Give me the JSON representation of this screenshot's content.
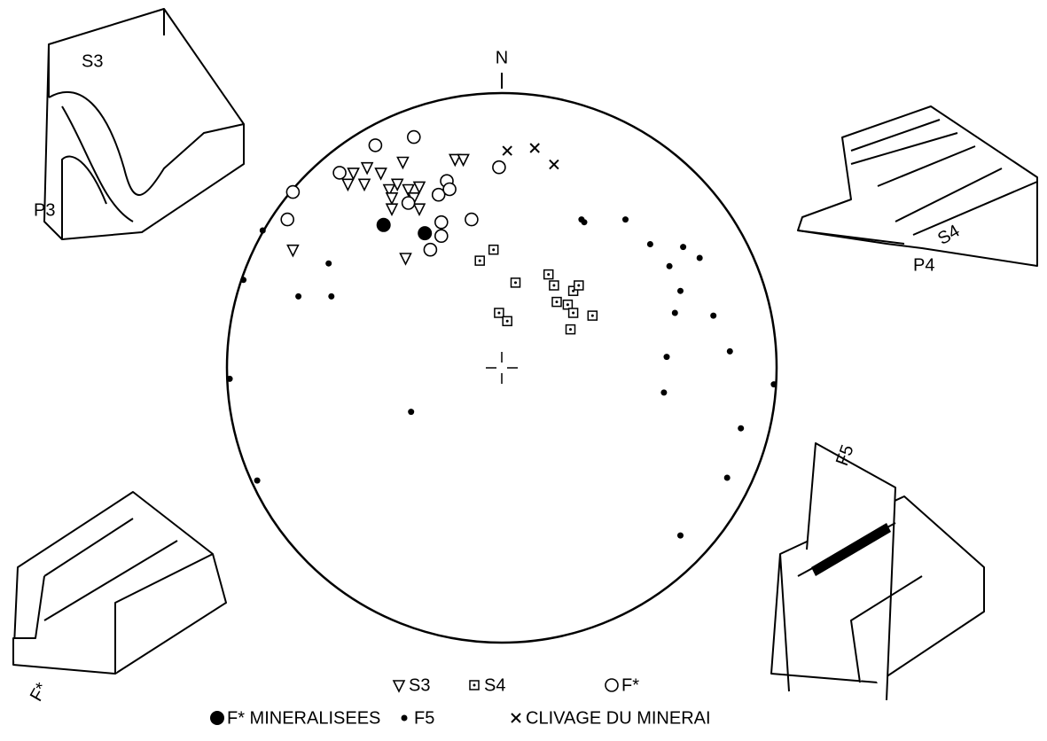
{
  "chart_data": {
    "type": "stereonet",
    "xlim": [
      -1,
      1
    ],
    "ylim": [
      -1,
      1
    ],
    "color": "#000000",
    "north": "N",
    "annotations": [
      "S3",
      "P3",
      "S4",
      "P4",
      "F5",
      "F*"
    ],
    "series": [
      {
        "name": "S3",
        "marker": "triangle",
        "x": [
          -0.56,
          -0.54,
          -0.5,
          -0.49,
          -0.44,
          -0.41,
          -0.4,
          -0.38,
          -0.36,
          -0.34,
          -0.32,
          -0.3,
          -0.3,
          -0.4,
          -0.17,
          -0.14,
          -0.35,
          -0.76
        ],
        "y": [
          0.67,
          0.71,
          0.67,
          0.73,
          0.71,
          0.65,
          0.62,
          0.67,
          0.75,
          0.65,
          0.62,
          0.66,
          0.58,
          0.58,
          0.76,
          0.76,
          0.4,
          0.43
        ]
      },
      {
        "name": "S4",
        "marker": "square",
        "x": [
          -0.08,
          -0.03,
          0.05,
          -0.01,
          0.02,
          0.17,
          0.19,
          0.26,
          0.2,
          0.24,
          0.26,
          0.33,
          0.25,
          0.28
        ],
        "y": [
          0.39,
          0.43,
          0.31,
          0.2,
          0.17,
          0.34,
          0.3,
          0.28,
          0.24,
          0.23,
          0.2,
          0.19,
          0.14,
          0.3
        ]
      },
      {
        "name": "F*",
        "marker": "circle",
        "x": [
          -0.46,
          -0.32,
          -0.59,
          -0.76,
          -0.78,
          -0.34,
          -0.23,
          -0.2,
          -0.19,
          -0.22,
          -0.11,
          -0.22,
          -0.26,
          -0.01
        ],
        "y": [
          0.81,
          0.84,
          0.71,
          0.64,
          0.54,
          0.6,
          0.63,
          0.68,
          0.65,
          0.53,
          0.54,
          0.48,
          0.43,
          0.73
        ]
      },
      {
        "name": "F* MINERALISEES",
        "marker": "disc",
        "x": [
          -0.43,
          -0.28
        ],
        "y": [
          0.52,
          0.49
        ]
      },
      {
        "name": "F5",
        "marker": "dot",
        "x": [
          -0.87,
          -0.94,
          -0.63,
          -0.74,
          -0.62,
          -0.99,
          -0.89,
          -0.33,
          0.29,
          0.3,
          0.45,
          0.54,
          0.66,
          0.72,
          0.61,
          0.65,
          0.63,
          0.77,
          0.83,
          0.6,
          0.59,
          0.87,
          0.82,
          0.65,
          0.99
        ],
        "y": [
          0.5,
          0.32,
          0.38,
          0.26,
          0.26,
          -0.04,
          -0.41,
          -0.16,
          0.54,
          0.53,
          0.54,
          0.45,
          0.44,
          0.4,
          0.37,
          0.28,
          0.2,
          0.19,
          0.06,
          0.04,
          -0.09,
          -0.22,
          -0.4,
          -0.61,
          -0.06
        ]
      },
      {
        "name": "CLIVAGE DU MINERAI",
        "marker": "cross",
        "x": [
          0.02,
          0.12,
          0.19
        ],
        "y": [
          0.79,
          0.8,
          0.74
        ]
      }
    ]
  }
}
